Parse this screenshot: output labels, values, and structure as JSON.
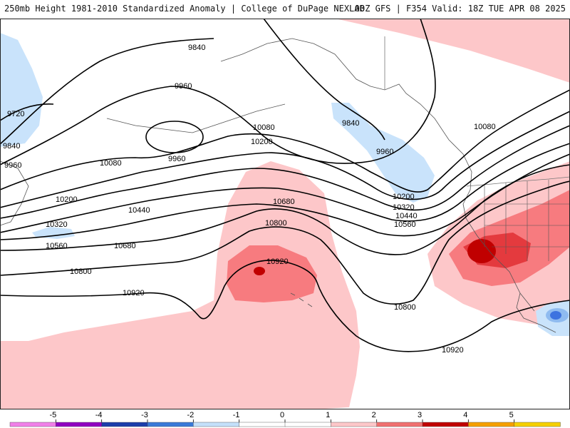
{
  "header": {
    "left_title": "250mb Height 1981-2010 Standardized Anomaly | College of DuPage NEXLAB",
    "right_title": "00Z GFS | F354 Valid: 18Z TUE APR 08 2025"
  },
  "map": {
    "contour_labels": [
      "9720",
      "9840",
      "9960",
      "10080",
      "10200",
      "10320",
      "10440",
      "10560",
      "10680",
      "10800",
      "10920"
    ],
    "colors": {
      "neg1": "#c9e3fb",
      "neg2": "#8fbbf0",
      "neg3": "#3d73e0",
      "pos1": "#fdc7c9",
      "pos2": "#f77b7f",
      "pos3": "#e43a3e",
      "pos4": "#c00000"
    }
  },
  "colorbar": {
    "ticks": [
      "-5",
      "-4",
      "-3",
      "-2",
      "-1",
      "0",
      "1",
      "2",
      "3",
      "4",
      "5"
    ],
    "colors": [
      "#f080e8",
      "#9000c0",
      "#1c3eaa",
      "#3a7ad8",
      "#c4e0fa",
      "#ffffff",
      "#ffffff",
      "#fdc7c9",
      "#f07070",
      "#c00000",
      "#f5a000",
      "#f5d000"
    ]
  }
}
